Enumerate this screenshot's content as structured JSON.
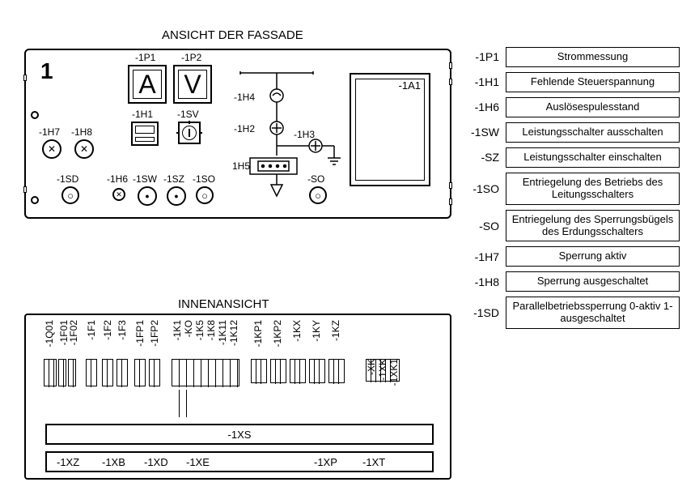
{
  "titles": {
    "front": "ANSICHT DER FASSADE",
    "inner": "INNENANSICHT"
  },
  "panel_number": "1",
  "gauges": {
    "p1": {
      "label": "-1P1",
      "letter": "A"
    },
    "p2": {
      "label": "-1P2",
      "letter": "V"
    }
  },
  "front_labels": {
    "h1": "-1H1",
    "sv": "-1SV",
    "h7": "-1H7",
    "h8": "-1H8",
    "sd": "-1SD",
    "h6": "-1H6",
    "sw": "-1SW",
    "sz": "-1SZ",
    "so1": "-1SO",
    "so2": "-SO",
    "h4": "-1H4",
    "h2": "-1H2",
    "h3": "-1H3",
    "h5": "-1H5",
    "a1": "-1A1"
  },
  "inner": {
    "vertical_labels": [
      "-1Q01",
      "-1F01",
      "-1F02",
      "-1F1",
      "-1F2",
      "-1F3",
      "-1FP1",
      "-1FP2",
      "-1K1",
      "-KO",
      "-1K5",
      "-1K8",
      "-1K11",
      "-1K12",
      "-1KP1",
      "-1KP2",
      "-1KX",
      "-1KY",
      "-1KZ",
      "-XK",
      "-1XK",
      "-1XK1"
    ],
    "long_box_label": "-1XS",
    "bottom_labels": [
      "-1XZ",
      "-1XB",
      "-1XD",
      "-1XE",
      "-1XP",
      "-1XT"
    ]
  },
  "legend": [
    {
      "key": "-1P1",
      "text": "Strommessung"
    },
    {
      "key": "-1H1",
      "text": "Fehlende Steuerspannung"
    },
    {
      "key": "-1H6",
      "text": "Auslösespulesstand"
    },
    {
      "key": "-1SW",
      "text": "Leistungsschalter ausschalten"
    },
    {
      "key": "-SZ",
      "text": "Leistungsschalter einschalten"
    },
    {
      "key": "-1SO",
      "text": "Entriegelung des Betriebs des Leitungsschalters"
    },
    {
      "key": "-SO",
      "text": "Entriegelung des Sperrungsbügels des Erdungsschalters"
    },
    {
      "key": "-1H7",
      "text": "Sperrung aktiv"
    },
    {
      "key": "-1H8",
      "text": "Sperrung ausgeschaltet"
    },
    {
      "key": "-1SD",
      "text": "Parallelbetriebssperrung 0-aktiv 1- ausgeschaltet"
    }
  ],
  "colors": {
    "line": "#000000",
    "bg": "#ffffff"
  }
}
